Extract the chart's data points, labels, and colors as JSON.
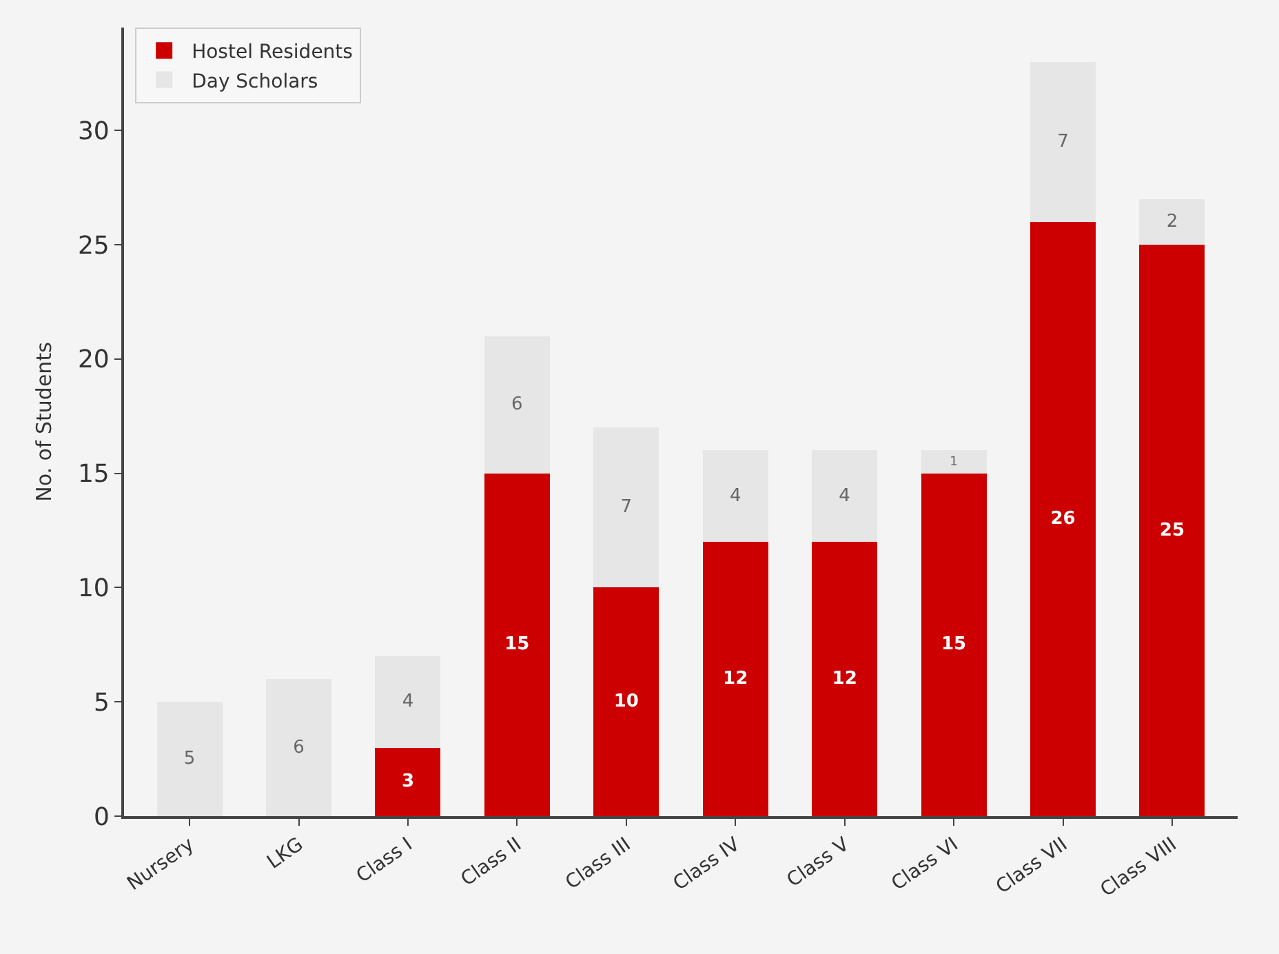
{
  "chart_data": {
    "type": "bar",
    "stacked": true,
    "ylabel": "No. of Students",
    "categories": [
      "Nursery",
      "LKG",
      "Class I",
      "Class II",
      "Class III",
      "Class IV",
      "Class V",
      "Class VI",
      "Class VII",
      "Class VIII"
    ],
    "series": [
      {
        "name": "Hostel Residents",
        "color": "#cc0000",
        "values": [
          0,
          0,
          3,
          15,
          10,
          12,
          12,
          15,
          26,
          25
        ],
        "value_labels": [
          null,
          null,
          "3",
          "15",
          "10",
          "12",
          "12",
          "15",
          "26",
          "25"
        ]
      },
      {
        "name": "Day Scholars",
        "color": "#e6e6e6",
        "values": [
          5,
          6,
          4,
          6,
          7,
          4,
          4,
          1,
          7,
          2
        ],
        "value_labels": [
          "5",
          "6",
          "4",
          "6",
          "7",
          "4",
          "4",
          "1",
          "7",
          "2"
        ]
      }
    ],
    "ylim": [
      0,
      34.5
    ],
    "yticks": [
      0,
      5,
      10,
      15,
      20,
      25,
      30
    ],
    "grid": false,
    "legend": "top left"
  }
}
